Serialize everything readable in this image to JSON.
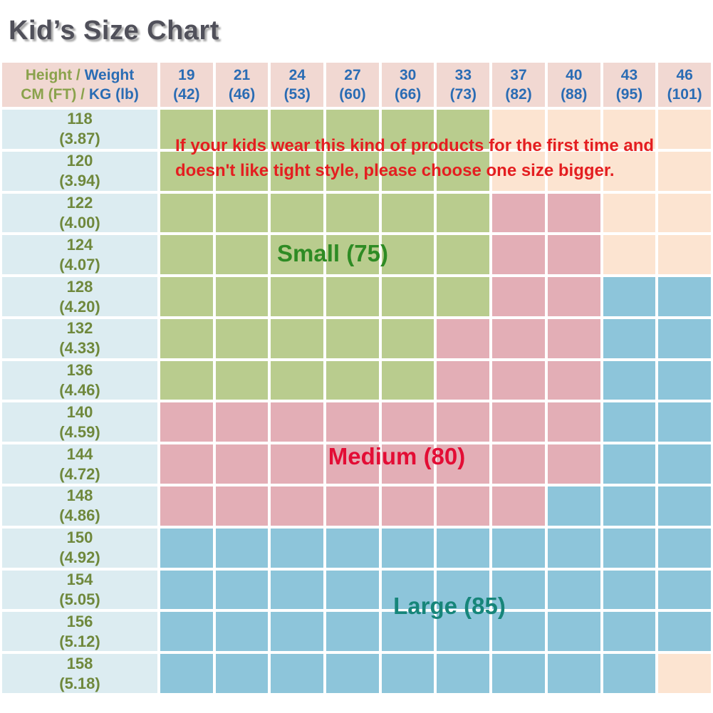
{
  "title": "Kid’s Size Chart",
  "note": {
    "line1": "If your kids wear this kind of products for the first time and",
    "line2": "doesn't like tight style, please choose one size bigger."
  },
  "zones": {
    "small": "Small (75)",
    "medium": "Medium (80)",
    "large": "Large (85)"
  },
  "colors": {
    "cell": {
      "G": "#b9cc8e",
      "K": "#e3aeb6",
      "B": "#8dc5da",
      "PE": "#fce4d1"
    },
    "header_bg": "#f1d8d2",
    "label_bg": "#dcecf1",
    "header_blue": "#2a6cb4",
    "header_green": "#8aa24c",
    "row_label": "#6f883c",
    "note_red": "#e41e20",
    "zone_small": "#2e8b24",
    "zone_medium": "#e30d35",
    "zone_large": "#168579",
    "title": "#50505a"
  },
  "chart_data": {
    "type": "table",
    "title": "Kid's Size Chart",
    "corner": {
      "line1": [
        {
          "text": "Height / ",
          "tone": "green"
        },
        {
          "text": "Weight",
          "tone": "blue"
        }
      ],
      "line2": [
        {
          "text": "CM (FT) / ",
          "tone": "green"
        },
        {
          "text": "KG (lb)",
          "tone": "blue"
        }
      ]
    },
    "columns": [
      {
        "kg": "19",
        "lb": "(42)"
      },
      {
        "kg": "21",
        "lb": "(46)"
      },
      {
        "kg": "24",
        "lb": "(53)"
      },
      {
        "kg": "27",
        "lb": "(60)"
      },
      {
        "kg": "30",
        "lb": "(66)"
      },
      {
        "kg": "33",
        "lb": "(73)"
      },
      {
        "kg": "37",
        "lb": "(82)"
      },
      {
        "kg": "40",
        "lb": "(88)"
      },
      {
        "kg": "43",
        "lb": "(95)"
      },
      {
        "kg": "46",
        "lb": "(101)"
      }
    ],
    "legend": {
      "G": "Small (75)",
      "K": "Medium (80)",
      "B": "Large (85)",
      "PE": "unshaded"
    },
    "rows": [
      {
        "cm": "118",
        "ft": "(3.87)",
        "cells": [
          "G",
          "G",
          "G",
          "G",
          "G",
          "G",
          "PE",
          "PE",
          "PE",
          "PE"
        ]
      },
      {
        "cm": "120",
        "ft": "(3.94)",
        "cells": [
          "G",
          "G",
          "G",
          "G",
          "G",
          "G",
          "PE",
          "PE",
          "PE",
          "PE"
        ]
      },
      {
        "cm": "122",
        "ft": "(4.00)",
        "cells": [
          "G",
          "G",
          "G",
          "G",
          "G",
          "G",
          "K",
          "K",
          "PE",
          "PE"
        ]
      },
      {
        "cm": "124",
        "ft": "(4.07)",
        "cells": [
          "G",
          "G",
          "G",
          "G",
          "G",
          "G",
          "K",
          "K",
          "PE",
          "PE"
        ]
      },
      {
        "cm": "128",
        "ft": "(4.20)",
        "cells": [
          "G",
          "G",
          "G",
          "G",
          "G",
          "G",
          "K",
          "K",
          "B",
          "B"
        ]
      },
      {
        "cm": "132",
        "ft": "(4.33)",
        "cells": [
          "G",
          "G",
          "G",
          "G",
          "G",
          "K",
          "K",
          "K",
          "B",
          "B"
        ]
      },
      {
        "cm": "136",
        "ft": "(4.46)",
        "cells": [
          "G",
          "G",
          "G",
          "G",
          "G",
          "K",
          "K",
          "K",
          "B",
          "B"
        ]
      },
      {
        "cm": "140",
        "ft": "(4.59)",
        "cells": [
          "K",
          "K",
          "K",
          "K",
          "K",
          "K",
          "K",
          "K",
          "B",
          "B"
        ]
      },
      {
        "cm": "144",
        "ft": "(4.72)",
        "cells": [
          "K",
          "K",
          "K",
          "K",
          "K",
          "K",
          "K",
          "K",
          "B",
          "B"
        ]
      },
      {
        "cm": "148",
        "ft": "(4.86)",
        "cells": [
          "K",
          "K",
          "K",
          "K",
          "K",
          "K",
          "K",
          "B",
          "B",
          "B"
        ]
      },
      {
        "cm": "150",
        "ft": "(4.92)",
        "cells": [
          "B",
          "B",
          "B",
          "B",
          "B",
          "B",
          "B",
          "B",
          "B",
          "B"
        ]
      },
      {
        "cm": "154",
        "ft": "(5.05)",
        "cells": [
          "B",
          "B",
          "B",
          "B",
          "B",
          "B",
          "B",
          "B",
          "B",
          "B"
        ]
      },
      {
        "cm": "156",
        "ft": "(5.12)",
        "cells": [
          "B",
          "B",
          "B",
          "B",
          "B",
          "B",
          "B",
          "B",
          "B",
          "B"
        ]
      },
      {
        "cm": "158",
        "ft": "(5.18)",
        "cells": [
          "B",
          "B",
          "B",
          "B",
          "B",
          "B",
          "B",
          "B",
          "B",
          "PE"
        ]
      }
    ]
  }
}
